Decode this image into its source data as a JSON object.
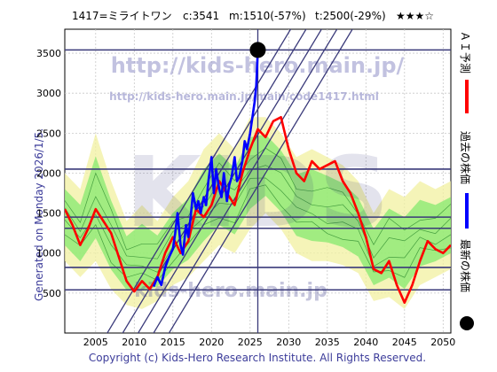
{
  "header": {
    "ticker": "1417=ミライトワン",
    "current": "c:3541",
    "market": "m:1510(-57%)",
    "target": "t:2500(-29%)",
    "rating": "★★★☆"
  },
  "side_caption": "Generated on Monday 2026/1/5.",
  "legend": [
    {
      "label": "ＡＩ予測",
      "color": "#ff0000"
    },
    {
      "label": "過去の株価",
      "color": "#0000ff"
    },
    {
      "label": "最新の株価",
      "color": "#000000"
    }
  ],
  "watermarks": {
    "url_large": "http://kids-hero.main.jp/",
    "url_small": "http://kids-hero.main.jp/main/code1417.html",
    "url_bottom": "kids-hero.main.jp",
    "big": "KIDS"
  },
  "footer": "Copyright (c) Kids-Hero Research Institute. All Rights Reserved.",
  "chart_data": {
    "type": "line",
    "xlim": [
      2001,
      2051
    ],
    "ylim": [
      0,
      3800
    ],
    "x_ticks": [
      2005,
      2010,
      2015,
      2020,
      2025,
      2030,
      2035,
      2040,
      2045,
      2050
    ],
    "y_ticks": [
      500,
      1000,
      1500,
      2000,
      2500,
      3000,
      3500
    ],
    "horizontal_levels": [
      3541,
      2050,
      1450,
      1310,
      820,
      540
    ],
    "latest_point": {
      "x": 2026,
      "y": 3541
    },
    "diagonal_lines": [
      {
        "x1": 2003,
        "y1": -560,
        "x2": 2038,
        "y2": 5040
      },
      {
        "x1": 2005,
        "y1": -560,
        "x2": 2040,
        "y2": 5040
      },
      {
        "x1": 2007,
        "y1": -560,
        "x2": 2042,
        "y2": 5040
      },
      {
        "x1": 2009,
        "y1": -560,
        "x2": 2044,
        "y2": 5040
      },
      {
        "x1": 2011,
        "y1": -560,
        "x2": 2046,
        "y2": 5040
      }
    ],
    "series": [
      {
        "name": "過去の株価",
        "color": "#0000ff",
        "x": [
          2012.5,
          2013,
          2013.5,
          2014,
          2014.5,
          2015,
          2015.3,
          2015.6,
          2016,
          2016.3,
          2016.7,
          2017,
          2017.3,
          2017.6,
          2018,
          2018.3,
          2018.6,
          2019,
          2019.3,
          2019.6,
          2020,
          2020.3,
          2020.6,
          2021,
          2021.3,
          2021.6,
          2022,
          2022.3,
          2022.6,
          2023,
          2023.3,
          2023.6,
          2024,
          2024.3,
          2024.6,
          2025,
          2025.3,
          2025.6,
          2025.8,
          2026
        ],
        "y": [
          580,
          700,
          600,
          820,
          950,
          1050,
          1250,
          1500,
          1100,
          980,
          1350,
          1200,
          1450,
          1750,
          1550,
          1650,
          1500,
          1700,
          1600,
          1900,
          2200,
          1750,
          2050,
          1800,
          1700,
          2000,
          1650,
          1850,
          1950,
          2200,
          1900,
          1950,
          2150,
          2400,
          2300,
          2500,
          2700,
          2900,
          3100,
          3541
        ]
      },
      {
        "name": "ＡＩ予測",
        "color": "#ff0000",
        "x": [
          2001,
          2002,
          2003,
          2004,
          2005,
          2006,
          2007,
          2008,
          2009,
          2010,
          2011,
          2012,
          2013,
          2014,
          2015,
          2016,
          2017,
          2018,
          2019,
          2020,
          2021,
          2022,
          2023,
          2024,
          2025,
          2026,
          2027,
          2028,
          2029,
          2030,
          2031,
          2032,
          2033,
          2034,
          2035,
          2036,
          2037,
          2038,
          2039,
          2040,
          2041,
          2042,
          2043,
          2044,
          2045,
          2046,
          2047,
          2048,
          2049,
          2050,
          2051
        ],
        "y": [
          1550,
          1350,
          1100,
          1300,
          1550,
          1400,
          1250,
          950,
          650,
          520,
          650,
          550,
          700,
          1000,
          1200,
          1000,
          1150,
          1550,
          1450,
          1600,
          1900,
          1750,
          1600,
          2000,
          2300,
          2550,
          2450,
          2650,
          2700,
          2300,
          2000,
          1900,
          2150,
          2050,
          2100,
          2150,
          1900,
          1750,
          1500,
          1200,
          800,
          750,
          900,
          600,
          380,
          600,
          900,
          1150,
          1050,
          1000,
          1100
        ]
      }
    ],
    "band": {
      "x": [
        2001,
        2003,
        2005,
        2007,
        2009,
        2011,
        2013,
        2015,
        2017,
        2019,
        2021,
        2023,
        2025,
        2027,
        2029,
        2031,
        2033,
        2035,
        2037,
        2039,
        2041,
        2043,
        2045,
        2047,
        2049,
        2051
      ],
      "lower": [
        900,
        700,
        900,
        550,
        350,
        300,
        400,
        600,
        700,
        900,
        1100,
        1000,
        1300,
        1500,
        1300,
        1000,
        900,
        900,
        850,
        750,
        400,
        450,
        300,
        600,
        700,
        800
      ],
      "upper": [
        2000,
        1800,
        2500,
        1900,
        1400,
        1600,
        1400,
        1700,
        1900,
        2300,
        2500,
        2300,
        2700,
        2700,
        2500,
        2200,
        2300,
        2200,
        2100,
        1900,
        1500,
        1800,
        1700,
        1900,
        1800,
        1900
      ]
    }
  }
}
